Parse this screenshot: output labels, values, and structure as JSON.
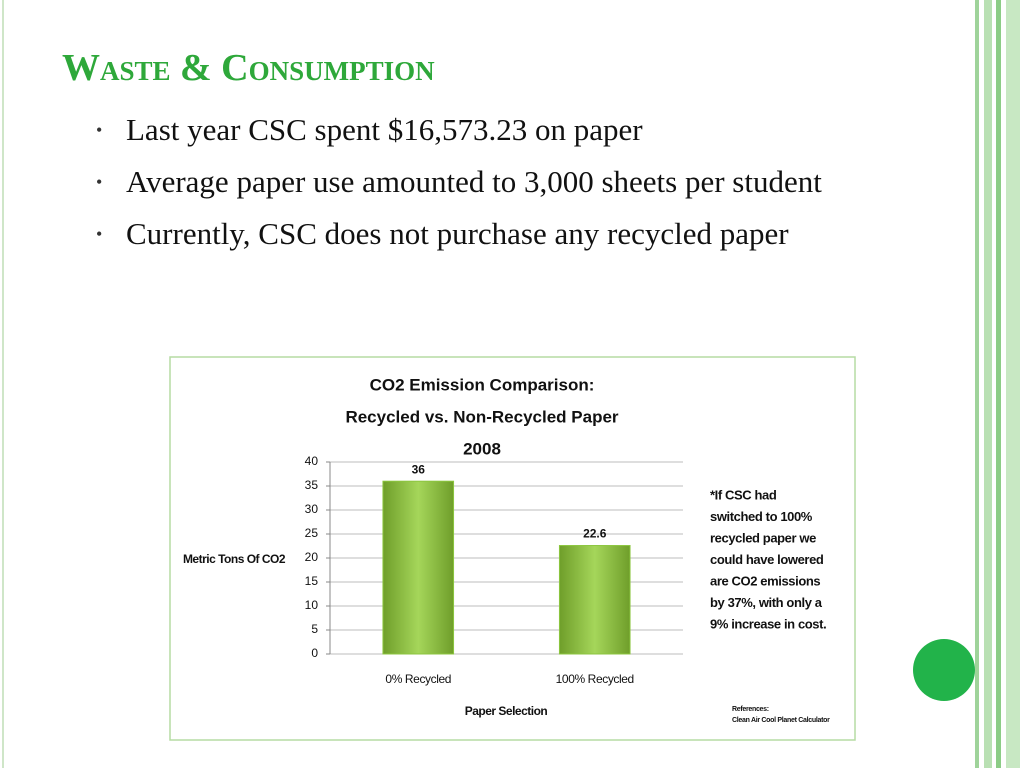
{
  "slide_title": "Waste & Consumption",
  "bullets": [
    "Last year CSC spent $16,573.23 on paper",
    "Average paper use amounted to 3,000 sheets per student",
    "Currently, CSC does not purchase any recycled paper"
  ],
  "chart_data": {
    "type": "bar",
    "title": [
      "CO2 Emission Comparison:",
      "Recycled vs. Non-Recycled Paper",
      "2008"
    ],
    "categories": [
      "0% Recycled",
      "100% Recycled"
    ],
    "values": [
      36,
      22.6
    ],
    "color": "#8cc63f",
    "ylim": [
      0,
      40
    ],
    "yticks": [
      0,
      5,
      10,
      15,
      20,
      25,
      30,
      35,
      40
    ],
    "grid": true,
    "y_label": "Metric Tons Of CO2",
    "x_label": "Paper Selection",
    "annotation": [
      "*If CSC had",
      "switched to 100%",
      "recycled paper we",
      "could have lowered",
      "are CO2 emissions",
      "by 37%, with only a",
      "9% increase in cost."
    ],
    "references": [
      "References:",
      "Clean Air Cool Planet Calculator"
    ]
  }
}
